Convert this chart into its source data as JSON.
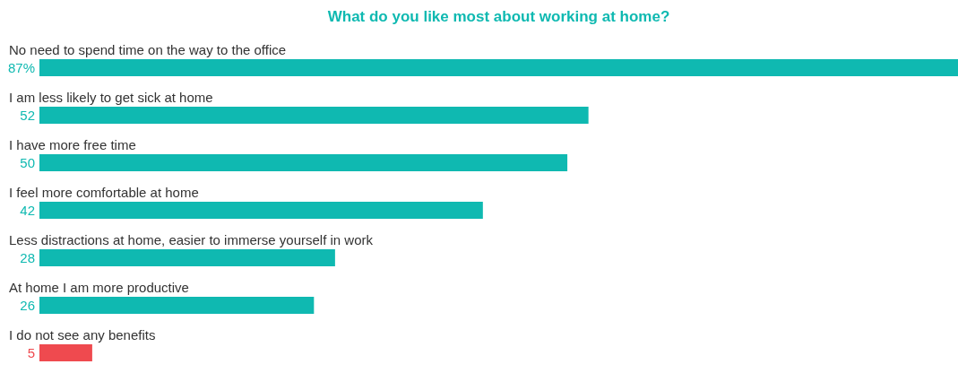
{
  "chart_data": {
    "type": "bar",
    "orientation": "horizontal",
    "title": "What do you like most about working at home?",
    "categories": [
      "No need to spend time on the way to the office",
      "I am less likely to get sick at home",
      "I have more free time",
      "I feel more comfortable at home",
      "Less distractions at home, easier to immerse yourself in work",
      "At home I am more productive",
      "I do not see any benefits"
    ],
    "values": [
      87,
      52,
      50,
      42,
      28,
      26,
      5
    ],
    "colors": [
      "#0fb9b1",
      "#0fb9b1",
      "#0fb9b1",
      "#0fb9b1",
      "#0fb9b1",
      "#0fb9b1",
      "#ef4a4f"
    ],
    "value_labels": [
      "87%",
      "52",
      "50",
      "42",
      "28",
      "26",
      "5"
    ]
  }
}
